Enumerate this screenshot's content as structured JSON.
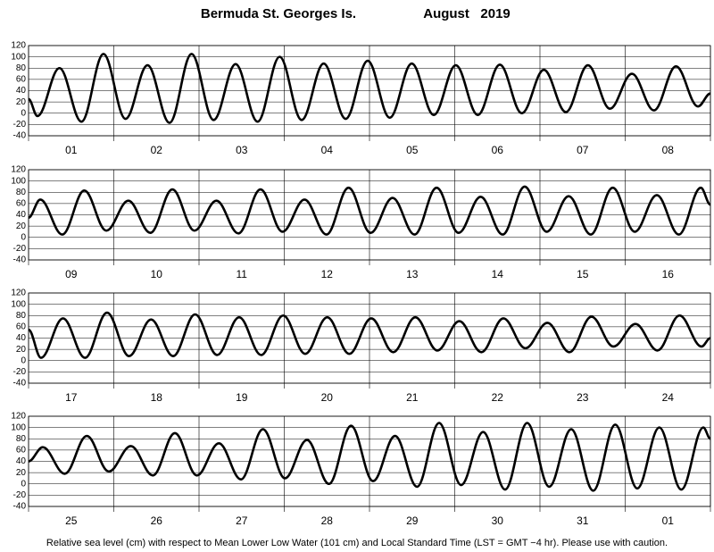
{
  "title": "Bermuda St. Georges Is.",
  "month": "August   2019",
  "footer": "Relative sea level (cm) with respect to Mean Lower Low Water (101 cm) and Local Standard Time (LST = GMT −4 hr). Please use with caution.",
  "chart_data": [
    {
      "type": "line",
      "categories": [
        "01",
        "02",
        "03",
        "04",
        "05",
        "06",
        "07",
        "08"
      ],
      "x": [
        0,
        2.5,
        8.7,
        14.9,
        21.1,
        27.3,
        33.5,
        39.7,
        45.9,
        52.1,
        58.3,
        64.5,
        70.7,
        76.9,
        83.1,
        89.3,
        95.5,
        101.7,
        107.9,
        114.1,
        120.3,
        126.5,
        132.7,
        138.9,
        145.1,
        151.3,
        157.5,
        163.7,
        169.9,
        176.1,
        182.3,
        188.5,
        192
      ],
      "series": [
        {
          "color": "#000000",
          "values": [
            25,
            -5,
            80,
            -15,
            105,
            -10,
            85,
            -17,
            105,
            -12,
            87,
            -15,
            100,
            -12,
            88,
            -10,
            93,
            -8,
            88,
            -3,
            85,
            -3,
            86,
            0,
            77,
            2,
            85,
            8,
            70,
            5,
            83,
            12,
            35
          ]
        }
      ],
      "xlim": [
        0,
        192
      ],
      "xticks": [
        0,
        24,
        48,
        72,
        96,
        120,
        144,
        168,
        192
      ],
      "ylim": [
        -40,
        120
      ],
      "yticks": [
        -40,
        -20,
        0,
        20,
        40,
        60,
        80,
        100,
        120
      ],
      "grid": true
    },
    {
      "type": "line",
      "categories": [
        "09",
        "10",
        "11",
        "12",
        "13",
        "14",
        "15",
        "16"
      ],
      "x": [
        0,
        3.3,
        9.5,
        15.7,
        21.9,
        28.1,
        34.3,
        40.5,
        46.7,
        52.9,
        59.1,
        65.3,
        71.5,
        77.7,
        83.9,
        90.1,
        96.3,
        102.5,
        108.7,
        114.9,
        121.1,
        127.3,
        133.5,
        139.7,
        145.9,
        152.1,
        158.3,
        164.5,
        170.7,
        176.9,
        183.1,
        189.3,
        192
      ],
      "series": [
        {
          "color": "#000000",
          "values": [
            35,
            67,
            5,
            83,
            12,
            65,
            8,
            85,
            12,
            65,
            7,
            85,
            10,
            67,
            5,
            88,
            8,
            70,
            5,
            88,
            8,
            72,
            5,
            90,
            10,
            73,
            5,
            88,
            10,
            75,
            5,
            88,
            58
          ]
        }
      ],
      "xlim": [
        0,
        192
      ],
      "xticks": [
        0,
        24,
        48,
        72,
        96,
        120,
        144,
        168,
        192
      ],
      "ylim": [
        -40,
        120
      ],
      "yticks": [
        -40,
        -20,
        0,
        20,
        40,
        60,
        80,
        100,
        120
      ],
      "grid": true
    },
    {
      "type": "line",
      "categories": [
        "17",
        "18",
        "19",
        "20",
        "21",
        "22",
        "23",
        "24"
      ],
      "x": [
        0,
        3.5,
        9.7,
        15.9,
        22.1,
        28.3,
        34.5,
        40.7,
        46.9,
        53.1,
        59.3,
        65.5,
        71.7,
        77.9,
        84.1,
        90.3,
        96.5,
        102.7,
        108.9,
        115.1,
        121.3,
        127.5,
        133.7,
        139.9,
        146.1,
        152.3,
        158.5,
        164.7,
        170.9,
        177.1,
        183.3,
        189.5,
        192
      ],
      "series": [
        {
          "color": "#000000",
          "values": [
            55,
            5,
            75,
            5,
            85,
            8,
            73,
            8,
            82,
            10,
            77,
            10,
            80,
            12,
            77,
            12,
            75,
            15,
            77,
            18,
            70,
            15,
            75,
            22,
            67,
            15,
            78,
            25,
            65,
            18,
            80,
            25,
            40
          ]
        }
      ],
      "xlim": [
        0,
        192
      ],
      "xticks": [
        0,
        24,
        48,
        72,
        96,
        120,
        144,
        168,
        192
      ],
      "ylim": [
        -40,
        120
      ],
      "yticks": [
        -40,
        -20,
        0,
        20,
        40,
        60,
        80,
        100,
        120
      ],
      "grid": true
    },
    {
      "type": "line",
      "categories": [
        "25",
        "26",
        "27",
        "28",
        "29",
        "30",
        "31",
        "01"
      ],
      "x": [
        0,
        4,
        10.2,
        16.4,
        22.6,
        28.8,
        35,
        41.2,
        47.4,
        53.6,
        59.8,
        66,
        72.2,
        78.4,
        84.6,
        90.8,
        97,
        103.2,
        109.4,
        115.6,
        121.8,
        128,
        134.2,
        140.4,
        146.6,
        152.8,
        159,
        165.2,
        171.4,
        177.6,
        183.8,
        190,
        192
      ],
      "series": [
        {
          "color": "#000000",
          "values": [
            40,
            65,
            18,
            85,
            22,
            67,
            15,
            90,
            15,
            72,
            8,
            97,
            10,
            78,
            0,
            103,
            5,
            85,
            -5,
            108,
            -2,
            92,
            -10,
            108,
            -5,
            97,
            -12,
            105,
            -8,
            100,
            -10,
            100,
            80
          ]
        }
      ],
      "xlim": [
        0,
        192
      ],
      "xticks": [
        0,
        24,
        48,
        72,
        96,
        120,
        144,
        168,
        192
      ],
      "ylim": [
        -40,
        120
      ],
      "yticks": [
        -40,
        -20,
        0,
        20,
        40,
        60,
        80,
        100,
        120
      ],
      "grid": true
    }
  ]
}
